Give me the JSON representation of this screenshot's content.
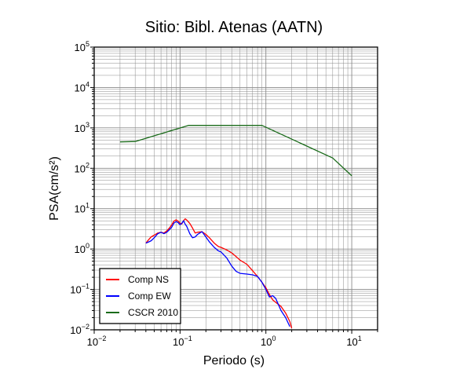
{
  "chart_data": {
    "type": "line",
    "title": "Sitio: Bibl. Atenas (AATN)",
    "xlabel": "Periodo (s)",
    "ylabel": "PSA(cm/s²)",
    "x_scale": "log",
    "y_scale": "log",
    "xlim": [
      0.01,
      20
    ],
    "ylim": [
      0.01,
      100000
    ],
    "x_ticks": [
      {
        "base": "10",
        "exp": "−2",
        "value": 0.01
      },
      {
        "base": "10",
        "exp": "−1",
        "value": 0.1
      },
      {
        "base": "10",
        "exp": "0",
        "value": 1
      },
      {
        "base": "10",
        "exp": "1",
        "value": 10
      }
    ],
    "y_ticks": [
      {
        "base": "10",
        "exp": "−2",
        "value": 0.01
      },
      {
        "base": "10",
        "exp": "−1",
        "value": 0.1
      },
      {
        "base": "10",
        "exp": "0",
        "value": 1
      },
      {
        "base": "10",
        "exp": "1",
        "value": 10
      },
      {
        "base": "10",
        "exp": "2",
        "value": 100
      },
      {
        "base": "10",
        "exp": "3",
        "value": 1000
      },
      {
        "base": "10",
        "exp": "4",
        "value": 10000
      },
      {
        "base": "10",
        "exp": "5",
        "value": 100000
      }
    ],
    "grid": true,
    "legend_position": "bottom-left",
    "series": [
      {
        "name": "Comp NS",
        "color": "#ff0000",
        "x": [
          0.04,
          0.043,
          0.046,
          0.05,
          0.055,
          0.06,
          0.065,
          0.07,
          0.075,
          0.08,
          0.085,
          0.09,
          0.095,
          0.1,
          0.105,
          0.11,
          0.115,
          0.12,
          0.13,
          0.14,
          0.15,
          0.16,
          0.18,
          0.2,
          0.22,
          0.25,
          0.28,
          0.3,
          0.35,
          0.4,
          0.45,
          0.5,
          0.6,
          0.7,
          0.8,
          0.9,
          1.0,
          1.1,
          1.2,
          1.3,
          1.5,
          1.7,
          1.9,
          2.0
        ],
        "y": [
          1.4,
          1.7,
          2.0,
          2.2,
          2.5,
          2.6,
          2.5,
          2.8,
          3.3,
          4.0,
          4.9,
          5.3,
          4.9,
          4.4,
          4.2,
          5.1,
          5.6,
          5.2,
          4.3,
          3.3,
          2.5,
          2.6,
          2.7,
          2.3,
          1.9,
          1.4,
          1.15,
          1.1,
          0.95,
          0.8,
          0.65,
          0.53,
          0.42,
          0.29,
          0.21,
          0.15,
          0.11,
          0.075,
          0.055,
          0.048,
          0.038,
          0.026,
          0.016,
          0.011
        ]
      },
      {
        "name": "Comp EW",
        "color": "#0000ff",
        "x": [
          0.04,
          0.043,
          0.046,
          0.05,
          0.055,
          0.06,
          0.065,
          0.07,
          0.075,
          0.08,
          0.085,
          0.09,
          0.095,
          0.1,
          0.105,
          0.11,
          0.115,
          0.12,
          0.13,
          0.14,
          0.15,
          0.16,
          0.18,
          0.2,
          0.22,
          0.25,
          0.28,
          0.3,
          0.35,
          0.4,
          0.45,
          0.5,
          0.6,
          0.7,
          0.8,
          0.9,
          1.0,
          1.1,
          1.2,
          1.3,
          1.5,
          1.7,
          1.9
        ],
        "y": [
          1.4,
          1.5,
          1.6,
          1.9,
          2.4,
          2.6,
          2.4,
          2.6,
          3.0,
          3.5,
          4.4,
          4.8,
          4.5,
          4.0,
          4.4,
          5.0,
          4.1,
          3.6,
          2.4,
          1.9,
          2.0,
          2.3,
          2.7,
          2.0,
          1.5,
          1.1,
          0.9,
          0.85,
          0.6,
          0.38,
          0.28,
          0.25,
          0.24,
          0.23,
          0.21,
          0.15,
          0.1,
          0.065,
          0.07,
          0.06,
          0.03,
          0.02,
          0.012
        ]
      },
      {
        "name": "CSCR 2010",
        "color": "#1a6b1a",
        "x": [
          0.02,
          0.03,
          0.125,
          0.9,
          6.0,
          10.0
        ],
        "y": [
          450,
          460,
          1150,
          1150,
          180,
          65
        ]
      }
    ]
  }
}
